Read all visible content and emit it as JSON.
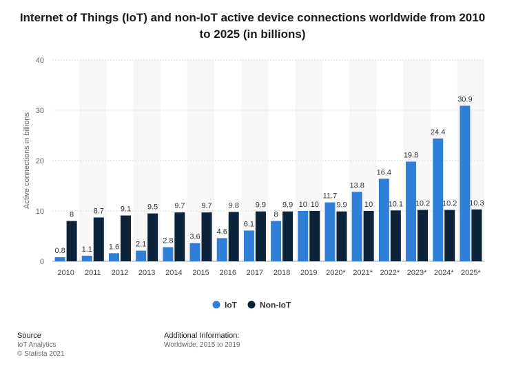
{
  "chart_data": {
    "type": "bar",
    "title": "Internet of Things (IoT) and non-IoT active device connections worldwide from 2010 to 2025 (in billions)",
    "xlabel": "",
    "ylabel": "Active connections in billions",
    "ylim": [
      0,
      40
    ],
    "yticks": [
      0,
      10,
      20,
      30,
      40
    ],
    "grid": true,
    "legend_position": "bottom-center",
    "categories": [
      "2010",
      "2011",
      "2012",
      "2013",
      "2014",
      "2015",
      "2016",
      "2017",
      "2018",
      "2019",
      "2020*",
      "2021*",
      "2022*",
      "2023*",
      "2024*",
      "2025*"
    ],
    "series": [
      {
        "name": "IoT",
        "color": "#2f7ed8",
        "values": [
          0.8,
          1.1,
          1.6,
          2.1,
          2.8,
          3.6,
          4.6,
          6.1,
          8,
          10,
          11.7,
          13.8,
          16.4,
          19.8,
          24.4,
          30.9
        ]
      },
      {
        "name": "Non-IoT",
        "color": "#0d233a",
        "values": [
          8,
          8.7,
          9.1,
          9.5,
          9.7,
          9.7,
          9.8,
          9.9,
          9.9,
          10,
          9.9,
          10,
          10.1,
          10.2,
          10.2,
          10.3
        ]
      }
    ]
  },
  "footer": {
    "source_heading": "Source",
    "source_line1": "IoT Analytics",
    "source_line2": "© Statista 2021",
    "info_heading": "Additional Information:",
    "info_line1": "Worldwide; 2015 to 2019"
  }
}
